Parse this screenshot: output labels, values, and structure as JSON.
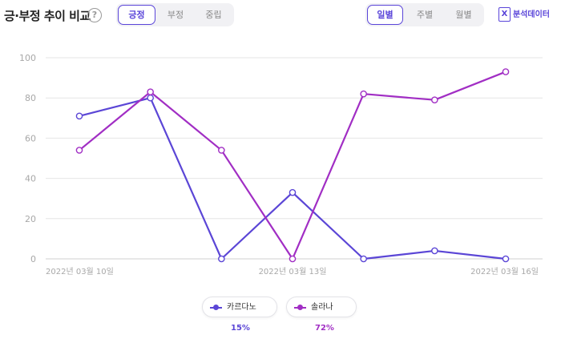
{
  "header": {
    "title": "긍·부정 추이 비교",
    "help_glyph": "?",
    "sentiment_tabs": [
      {
        "label": "긍정",
        "active": true
      },
      {
        "label": "부정",
        "active": false
      },
      {
        "label": "중립",
        "active": false
      }
    ],
    "period_tabs": [
      {
        "label": "일별",
        "active": true
      },
      {
        "label": "주별",
        "active": false
      },
      {
        "label": "월별",
        "active": false
      }
    ],
    "export_label": "분석데이터",
    "export_icon_glyph": "X",
    "export_icon": "excel-icon"
  },
  "colors": {
    "accent": "#5a45d9",
    "series_0": "#5b46d6",
    "series_1": "#a12ec4",
    "grid": "#e6e6e6",
    "axis_text": "#a8a8a8"
  },
  "chart_data": {
    "type": "line",
    "x": [
      "2022-03-10",
      "2022-03-11",
      "2022-03-12",
      "2022-03-13",
      "2022-03-14",
      "2022-03-15",
      "2022-03-16"
    ],
    "x_tick_labels": [
      {
        "index": 0,
        "label": "2022년 03월 10일"
      },
      {
        "index": 3,
        "label": "2022년 03월 13일"
      },
      {
        "index": 6,
        "label": "2022년 03월 16일"
      }
    ],
    "ylim": [
      0,
      100
    ],
    "yticks": [
      0,
      20,
      40,
      60,
      80,
      100
    ],
    "grid": true,
    "legend_position": "bottom-center",
    "series": [
      {
        "name": "카르다노",
        "share": "15%",
        "values": [
          71,
          80,
          0,
          33,
          0,
          4,
          0
        ]
      },
      {
        "name": "솔라나",
        "share": "72%",
        "values": [
          54,
          83,
          54,
          0,
          82,
          79,
          93
        ]
      }
    ]
  }
}
